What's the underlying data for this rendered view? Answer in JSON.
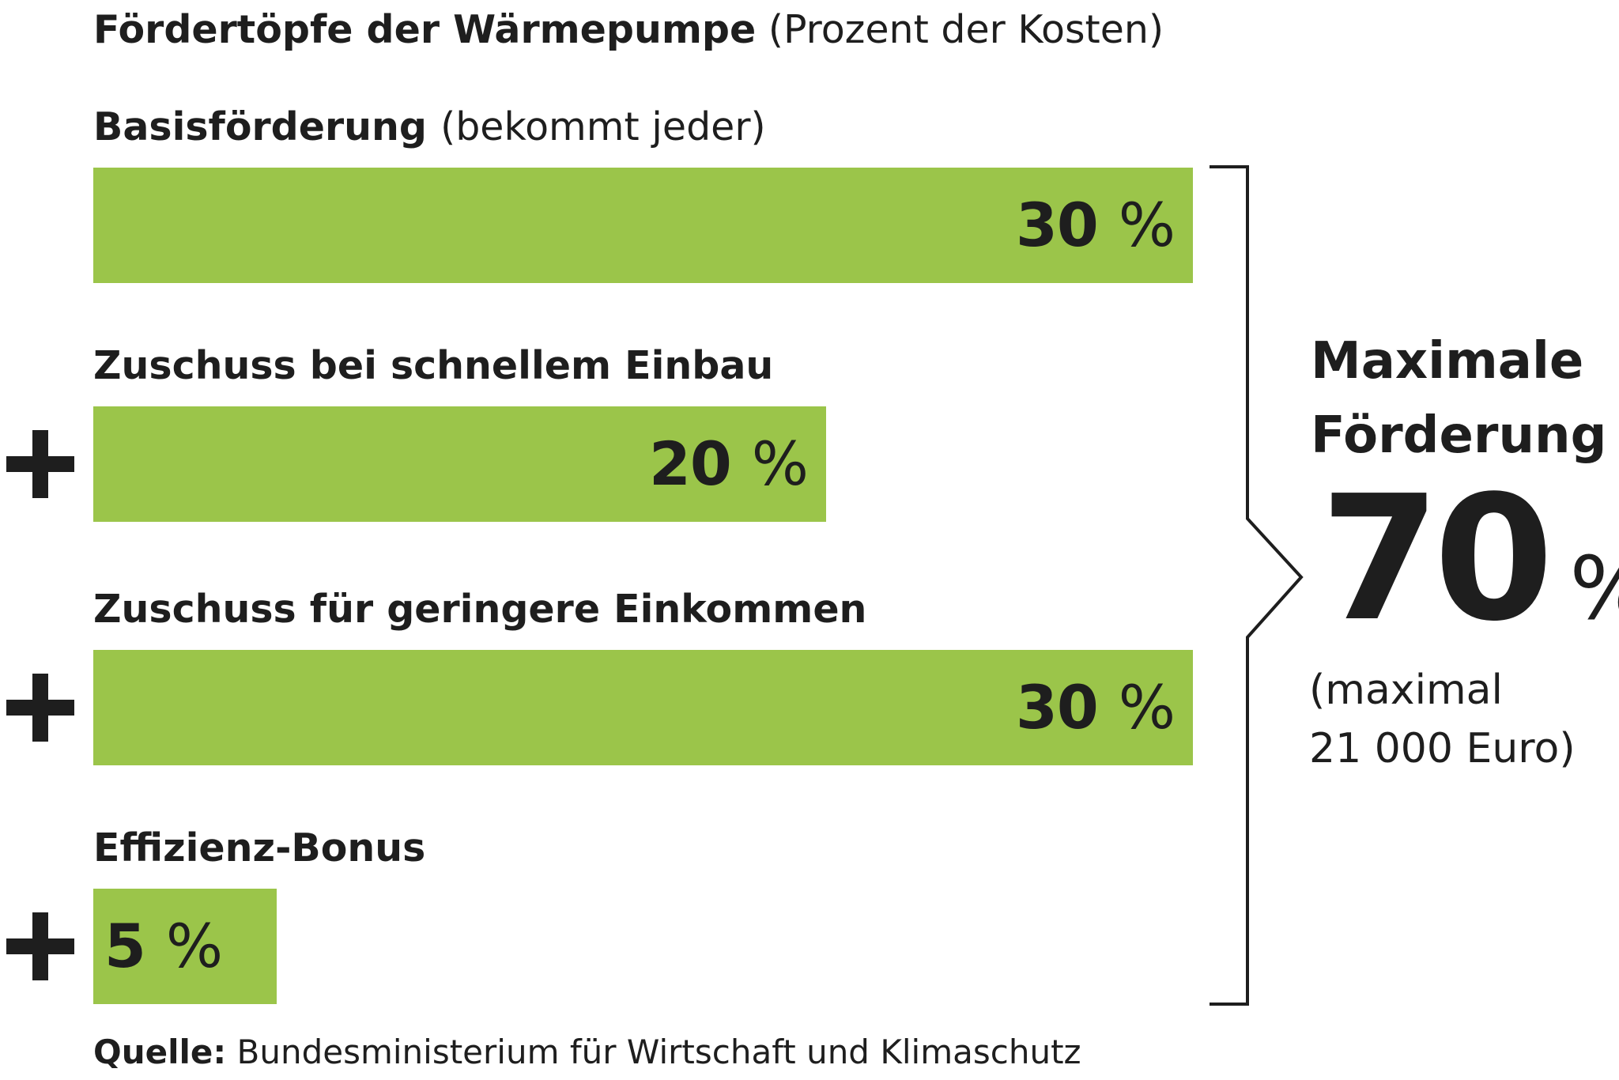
{
  "title": "Fördertöpfe der Wärmepumpe",
  "subtitle": "(Prozent der Kosten)",
  "chart_data": {
    "type": "bar",
    "title": "Fördertöpfe der Wärmepumpe (Prozent der Kosten)",
    "categories": [
      "Basisförderung",
      "Zuschuss bei schnellem Einbau",
      "Zuschuss für geringere Einkommen",
      "Effizienz-Bonus"
    ],
    "category_notes": [
      "(bekommt jeder)",
      "",
      "",
      ""
    ],
    "values": [
      30,
      20,
      30,
      5
    ],
    "value_labels": [
      "30",
      "20",
      "30",
      "5"
    ],
    "unit": "%",
    "operators": [
      "",
      "+",
      "+",
      "+"
    ],
    "xlim": [
      0,
      30
    ],
    "xlabel": "",
    "ylabel": "",
    "color": "#9bc54a",
    "total": {
      "label_line1": "Maximale",
      "label_line2": "Förderung",
      "value": "70",
      "unit": "%",
      "note_line1": "(maximal",
      "note_line2": "21 000 Euro)"
    }
  },
  "source": {
    "label": "Quelle:",
    "text": "Bundesministerium für Wirtschaft und Klimaschutz"
  }
}
